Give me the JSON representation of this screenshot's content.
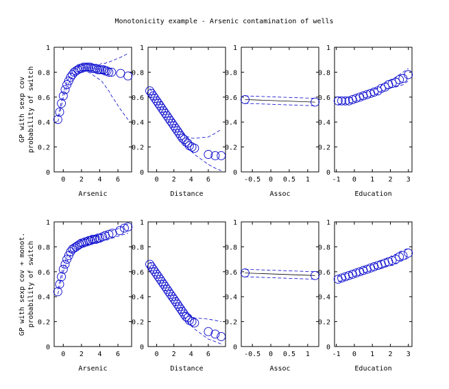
{
  "chart_data": {
    "type": "scatter",
    "title": "Monotonicity example - Arsenic contamination of wells",
    "row_ylabels": [
      [
        "GP with sexp cov",
        "probability of switch"
      ],
      [
        "GP with sexp cov + monot.",
        "probability of switch"
      ]
    ],
    "colors": {
      "marker": "#0000cc",
      "band": "#0000cc",
      "axis": "#000000"
    },
    "panels": [
      {
        "row": 0,
        "col": 0,
        "xlabel": "Arsenic",
        "xlim": [
          -1,
          7.5
        ],
        "ylim": [
          0,
          1
        ],
        "xticks": [
          0,
          2,
          4,
          6
        ],
        "xticklabels": [
          "0",
          "2",
          "4",
          "6"
        ],
        "yticks": [
          0,
          0.2,
          0.4,
          0.6,
          0.8,
          1
        ],
        "yticklabels": [
          "0",
          "0.2",
          "0.4",
          "0.6",
          "0.8",
          "1"
        ],
        "has_line": false,
        "x": [
          -0.6,
          -0.4,
          -0.2,
          0.0,
          0.2,
          0.4,
          0.6,
          0.8,
          1.0,
          1.2,
          1.4,
          1.6,
          1.8,
          2.0,
          2.2,
          2.4,
          2.6,
          2.8,
          3.0,
          3.2,
          3.4,
          3.6,
          3.8,
          4.0,
          4.2,
          4.4,
          4.6,
          4.8,
          5.0,
          5.3,
          6.3,
          7.1
        ],
        "y": [
          0.42,
          0.48,
          0.55,
          0.61,
          0.66,
          0.7,
          0.73,
          0.76,
          0.78,
          0.8,
          0.81,
          0.82,
          0.83,
          0.83,
          0.84,
          0.84,
          0.84,
          0.84,
          0.84,
          0.83,
          0.83,
          0.83,
          0.82,
          0.82,
          0.82,
          0.82,
          0.81,
          0.81,
          0.8,
          0.8,
          0.79,
          0.77
        ],
        "upper": [
          0.44,
          0.5,
          0.57,
          0.63,
          0.68,
          0.72,
          0.75,
          0.78,
          0.8,
          0.82,
          0.83,
          0.84,
          0.85,
          0.85,
          0.86,
          0.86,
          0.86,
          0.86,
          0.86,
          0.86,
          0.86,
          0.86,
          0.86,
          0.86,
          0.87,
          0.87,
          0.87,
          0.88,
          0.88,
          0.89,
          0.92,
          0.95
        ],
        "lower": [
          0.4,
          0.46,
          0.53,
          0.59,
          0.64,
          0.68,
          0.71,
          0.74,
          0.76,
          0.78,
          0.79,
          0.8,
          0.81,
          0.81,
          0.81,
          0.81,
          0.8,
          0.8,
          0.79,
          0.78,
          0.77,
          0.76,
          0.75,
          0.74,
          0.73,
          0.71,
          0.69,
          0.67,
          0.65,
          0.61,
          0.5,
          0.42
        ]
      },
      {
        "row": 0,
        "col": 1,
        "xlabel": "Distance",
        "xlim": [
          -1,
          8
        ],
        "ylim": [
          0,
          1
        ],
        "xticks": [
          0,
          2,
          4,
          6
        ],
        "xticklabels": [
          "0",
          "2",
          "4",
          "6"
        ],
        "yticks": [
          0,
          0.2,
          0.4,
          0.6,
          0.8,
          1
        ],
        "yticklabels": [
          "0",
          "0.2",
          "0.4",
          "0.6",
          "0.8",
          "1"
        ],
        "has_line": false,
        "x": [
          -0.8,
          -0.6,
          -0.4,
          -0.2,
          0.0,
          0.2,
          0.4,
          0.6,
          0.8,
          1.0,
          1.2,
          1.4,
          1.6,
          1.8,
          2.0,
          2.2,
          2.4,
          2.6,
          2.8,
          3.0,
          3.2,
          3.4,
          3.6,
          3.8,
          4.1,
          4.4,
          6.0,
          6.8,
          7.5
        ],
        "y": [
          0.65,
          0.63,
          0.61,
          0.59,
          0.57,
          0.55,
          0.53,
          0.51,
          0.49,
          0.47,
          0.45,
          0.43,
          0.41,
          0.39,
          0.37,
          0.35,
          0.33,
          0.31,
          0.29,
          0.27,
          0.26,
          0.24,
          0.23,
          0.21,
          0.2,
          0.19,
          0.14,
          0.13,
          0.13
        ],
        "upper": [
          0.67,
          0.65,
          0.63,
          0.61,
          0.59,
          0.57,
          0.55,
          0.53,
          0.51,
          0.49,
          0.47,
          0.45,
          0.43,
          0.41,
          0.39,
          0.37,
          0.35,
          0.33,
          0.32,
          0.31,
          0.3,
          0.29,
          0.28,
          0.28,
          0.27,
          0.27,
          0.28,
          0.31,
          0.34
        ],
        "lower": [
          0.63,
          0.61,
          0.59,
          0.57,
          0.55,
          0.53,
          0.51,
          0.49,
          0.47,
          0.45,
          0.43,
          0.41,
          0.39,
          0.37,
          0.35,
          0.33,
          0.31,
          0.29,
          0.27,
          0.25,
          0.23,
          0.21,
          0.19,
          0.18,
          0.16,
          0.14,
          0.06,
          0.03,
          0.01
        ]
      },
      {
        "row": 0,
        "col": 2,
        "xlabel": "Assoc",
        "xlim": [
          -0.8,
          1.3
        ],
        "ylim": [
          0,
          1
        ],
        "xticks": [
          -0.5,
          0,
          0.5,
          1
        ],
        "xticklabels": [
          "-0.5",
          "0",
          "0.5",
          "1"
        ],
        "yticks": [
          0,
          0.2,
          0.4,
          0.6,
          0.8,
          1
        ],
        "yticklabels": [
          "0",
          "0.2",
          "0.4",
          "0.6",
          "0.8",
          "1"
        ],
        "has_line": true,
        "x": [
          -0.7,
          1.2
        ],
        "y": [
          0.58,
          0.56
        ],
        "upper": [
          0.61,
          0.59
        ],
        "lower": [
          0.55,
          0.53
        ]
      },
      {
        "row": 0,
        "col": 3,
        "xlabel": "Education",
        "xlim": [
          -1.1,
          3.2
        ],
        "ylim": [
          0,
          1
        ],
        "xticks": [
          -1,
          0,
          1,
          2,
          3
        ],
        "xticklabels": [
          "-1",
          "0",
          "1",
          "2",
          "3"
        ],
        "yticks": [
          0,
          0.2,
          0.4,
          0.6,
          0.8,
          1
        ],
        "yticklabels": [
          "0",
          "0.2",
          "0.4",
          "0.6",
          "0.8",
          "1"
        ],
        "has_line": false,
        "x": [
          -0.9,
          -0.7,
          -0.5,
          -0.3,
          -0.1,
          0.1,
          0.3,
          0.5,
          0.7,
          0.9,
          1.1,
          1.3,
          1.5,
          1.7,
          1.9,
          2.1,
          2.3,
          2.5,
          2.7,
          3.0
        ],
        "y": [
          0.57,
          0.57,
          0.57,
          0.57,
          0.58,
          0.59,
          0.6,
          0.61,
          0.62,
          0.63,
          0.64,
          0.65,
          0.67,
          0.68,
          0.7,
          0.71,
          0.72,
          0.74,
          0.75,
          0.78
        ],
        "upper": [
          0.6,
          0.59,
          0.59,
          0.59,
          0.6,
          0.61,
          0.62,
          0.63,
          0.64,
          0.65,
          0.66,
          0.67,
          0.69,
          0.71,
          0.73,
          0.74,
          0.76,
          0.78,
          0.8,
          0.83
        ],
        "lower": [
          0.54,
          0.55,
          0.55,
          0.55,
          0.56,
          0.57,
          0.58,
          0.59,
          0.6,
          0.61,
          0.62,
          0.63,
          0.65,
          0.66,
          0.67,
          0.68,
          0.68,
          0.69,
          0.7,
          0.73
        ]
      },
      {
        "row": 1,
        "col": 0,
        "xlabel": "Arsenic",
        "xlim": [
          -1,
          7.5
        ],
        "ylim": [
          0,
          1
        ],
        "xticks": [
          0,
          2,
          4,
          6
        ],
        "xticklabels": [
          "0",
          "2",
          "4",
          "6"
        ],
        "yticks": [
          0,
          0.2,
          0.4,
          0.6,
          0.8,
          1
        ],
        "yticklabels": [
          "0",
          "0.2",
          "0.4",
          "0.6",
          "0.8",
          "1"
        ],
        "has_line": false,
        "x": [
          -0.6,
          -0.4,
          -0.2,
          0.0,
          0.2,
          0.4,
          0.6,
          0.8,
          1.0,
          1.2,
          1.4,
          1.6,
          1.8,
          2.0,
          2.2,
          2.4,
          2.6,
          2.8,
          3.0,
          3.2,
          3.4,
          3.6,
          3.8,
          4.0,
          4.3,
          4.6,
          5.0,
          5.4,
          6.2,
          6.7,
          7.1
        ],
        "y": [
          0.44,
          0.5,
          0.56,
          0.62,
          0.66,
          0.7,
          0.73,
          0.76,
          0.78,
          0.79,
          0.8,
          0.81,
          0.82,
          0.83,
          0.83,
          0.84,
          0.84,
          0.85,
          0.85,
          0.86,
          0.86,
          0.86,
          0.87,
          0.87,
          0.88,
          0.89,
          0.9,
          0.91,
          0.93,
          0.95,
          0.96
        ],
        "upper": [
          0.46,
          0.52,
          0.58,
          0.64,
          0.68,
          0.72,
          0.75,
          0.78,
          0.8,
          0.81,
          0.82,
          0.83,
          0.84,
          0.85,
          0.85,
          0.86,
          0.86,
          0.87,
          0.87,
          0.88,
          0.88,
          0.88,
          0.89,
          0.89,
          0.9,
          0.91,
          0.92,
          0.93,
          0.95,
          0.97,
          0.98
        ],
        "lower": [
          0.42,
          0.48,
          0.54,
          0.6,
          0.64,
          0.68,
          0.71,
          0.74,
          0.76,
          0.77,
          0.78,
          0.79,
          0.8,
          0.81,
          0.81,
          0.82,
          0.82,
          0.82,
          0.83,
          0.83,
          0.83,
          0.84,
          0.84,
          0.84,
          0.85,
          0.85,
          0.86,
          0.87,
          0.89,
          0.9,
          0.91
        ]
      },
      {
        "row": 1,
        "col": 1,
        "xlabel": "Distance",
        "xlim": [
          -1,
          8
        ],
        "ylim": [
          0,
          1
        ],
        "xticks": [
          0,
          2,
          4,
          6
        ],
        "xticklabels": [
          "0",
          "2",
          "4",
          "6"
        ],
        "yticks": [
          0,
          0.2,
          0.4,
          0.6,
          0.8,
          1
        ],
        "yticklabels": [
          "0",
          "0.2",
          "0.4",
          "0.6",
          "0.8",
          "1"
        ],
        "has_line": false,
        "x": [
          -0.8,
          -0.6,
          -0.4,
          -0.2,
          0.0,
          0.2,
          0.4,
          0.6,
          0.8,
          1.0,
          1.2,
          1.4,
          1.6,
          1.8,
          2.0,
          2.2,
          2.4,
          2.6,
          2.8,
          3.0,
          3.2,
          3.4,
          3.6,
          3.8,
          4.1,
          4.4,
          6.0,
          6.8,
          7.5
        ],
        "y": [
          0.66,
          0.64,
          0.62,
          0.6,
          0.58,
          0.56,
          0.54,
          0.52,
          0.5,
          0.48,
          0.46,
          0.44,
          0.42,
          0.4,
          0.38,
          0.36,
          0.34,
          0.32,
          0.3,
          0.28,
          0.26,
          0.24,
          0.23,
          0.21,
          0.2,
          0.19,
          0.12,
          0.1,
          0.08
        ],
        "upper": [
          0.68,
          0.66,
          0.64,
          0.62,
          0.6,
          0.58,
          0.56,
          0.54,
          0.52,
          0.5,
          0.48,
          0.46,
          0.44,
          0.42,
          0.4,
          0.38,
          0.36,
          0.34,
          0.32,
          0.3,
          0.28,
          0.27,
          0.26,
          0.25,
          0.24,
          0.23,
          0.22,
          0.21,
          0.2
        ],
        "lower": [
          0.64,
          0.62,
          0.6,
          0.58,
          0.56,
          0.54,
          0.52,
          0.5,
          0.48,
          0.46,
          0.44,
          0.42,
          0.4,
          0.38,
          0.36,
          0.34,
          0.32,
          0.3,
          0.28,
          0.26,
          0.24,
          0.22,
          0.2,
          0.18,
          0.16,
          0.14,
          0.06,
          0.04,
          0.02
        ]
      },
      {
        "row": 1,
        "col": 2,
        "xlabel": "Assoc",
        "xlim": [
          -0.8,
          1.3
        ],
        "ylim": [
          0,
          1
        ],
        "xticks": [
          -0.5,
          0,
          0.5,
          1
        ],
        "xticklabels": [
          "-0.5",
          "0",
          "0.5",
          "1"
        ],
        "yticks": [
          0,
          0.2,
          0.4,
          0.6,
          0.8,
          1
        ],
        "yticklabels": [
          "0",
          "0.2",
          "0.4",
          "0.6",
          "0.8",
          "1"
        ],
        "has_line": true,
        "x": [
          -0.7,
          1.2
        ],
        "y": [
          0.59,
          0.57
        ],
        "upper": [
          0.62,
          0.6
        ],
        "lower": [
          0.56,
          0.54
        ]
      },
      {
        "row": 1,
        "col": 3,
        "xlabel": "Education",
        "xlim": [
          -1.1,
          3.2
        ],
        "ylim": [
          0,
          1
        ],
        "xticks": [
          -1,
          0,
          1,
          2,
          3
        ],
        "xticklabels": [
          "-1",
          "0",
          "1",
          "2",
          "3"
        ],
        "yticks": [
          0,
          0.2,
          0.4,
          0.6,
          0.8,
          1
        ],
        "yticklabels": [
          "0",
          "0.2",
          "0.4",
          "0.6",
          "0.8",
          "1"
        ],
        "has_line": false,
        "x": [
          -0.9,
          -0.7,
          -0.5,
          -0.3,
          -0.1,
          0.1,
          0.3,
          0.5,
          0.7,
          0.9,
          1.1,
          1.3,
          1.5,
          1.7,
          1.9,
          2.1,
          2.3,
          2.5,
          2.7,
          3.0
        ],
        "y": [
          0.54,
          0.55,
          0.56,
          0.57,
          0.58,
          0.59,
          0.6,
          0.61,
          0.62,
          0.63,
          0.64,
          0.65,
          0.66,
          0.67,
          0.68,
          0.69,
          0.7,
          0.72,
          0.73,
          0.75
        ],
        "upper": [
          0.56,
          0.57,
          0.58,
          0.59,
          0.6,
          0.61,
          0.62,
          0.63,
          0.64,
          0.65,
          0.66,
          0.67,
          0.69,
          0.7,
          0.71,
          0.73,
          0.74,
          0.76,
          0.77,
          0.79
        ],
        "lower": [
          0.52,
          0.53,
          0.54,
          0.55,
          0.56,
          0.57,
          0.58,
          0.59,
          0.6,
          0.61,
          0.62,
          0.63,
          0.63,
          0.64,
          0.65,
          0.65,
          0.66,
          0.68,
          0.69,
          0.71
        ]
      }
    ]
  }
}
